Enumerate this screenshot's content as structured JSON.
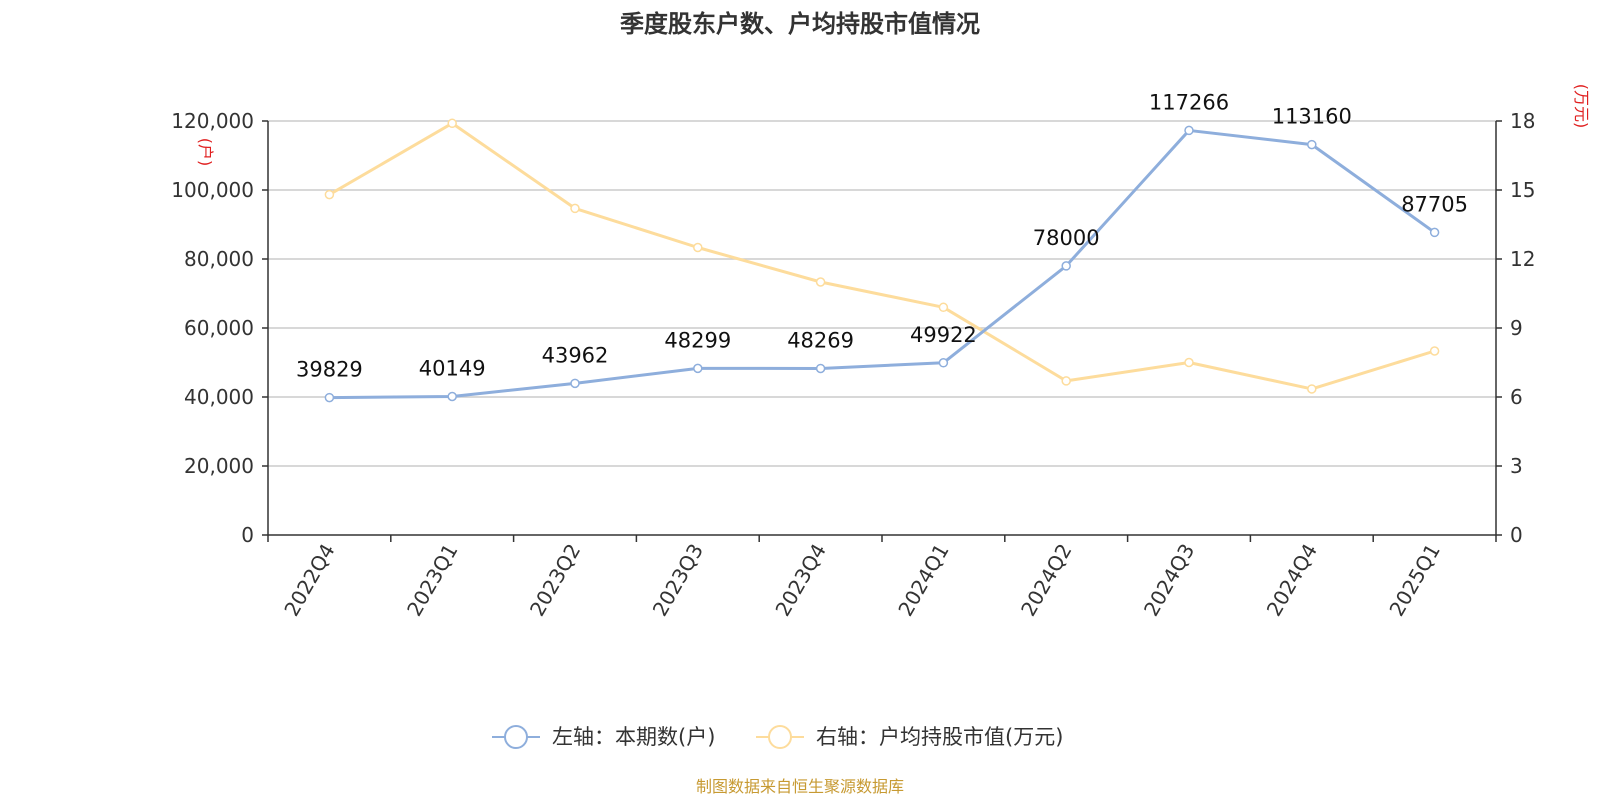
{
  "colors": {
    "series_left": "#8eaedc",
    "series_right": "#fddc9c",
    "axis_unit": "#e02020",
    "source": "#c79a32",
    "grid": "#cccccc",
    "axis": "#333333"
  },
  "chart_data": {
    "type": "line",
    "title": "季度股东户数、户均持股市值情况",
    "categories": [
      "2022Q4",
      "2023Q1",
      "2023Q2",
      "2023Q3",
      "2023Q4",
      "2024Q1",
      "2024Q2",
      "2024Q3",
      "2024Q4",
      "2025Q1"
    ],
    "left_axis": {
      "unit": "(户)",
      "ylim": [
        0,
        120000
      ],
      "ticks": [
        0,
        20000,
        40000,
        60000,
        80000,
        100000,
        120000
      ],
      "tick_labels": [
        "0",
        "20,000",
        "40,000",
        "60,000",
        "80,000",
        "100,000",
        "120,000"
      ]
    },
    "right_axis": {
      "unit": "(万元)",
      "ylim": [
        0,
        18
      ],
      "ticks": [
        0,
        3,
        6,
        9,
        12,
        15,
        18
      ],
      "tick_labels": [
        "0",
        "3",
        "6",
        "9",
        "12",
        "15",
        "18"
      ]
    },
    "series": [
      {
        "name": "左轴：本期数(户)",
        "axis": "left",
        "values": [
          39829,
          40149,
          43962,
          48299,
          48269,
          49922,
          78000,
          117266,
          113160,
          87705
        ],
        "data_labels": [
          "39829",
          "40149",
          "43962",
          "48299",
          "48269",
          "49922",
          "78000",
          "117266",
          "113160",
          "87705"
        ]
      },
      {
        "name": "右轴：户均持股市值(万元)",
        "axis": "right",
        "values": [
          14.8,
          17.9,
          14.2,
          12.5,
          11.0,
          9.9,
          6.7,
          7.5,
          6.35,
          8.0
        ]
      }
    ],
    "grid": true,
    "legend_position": "bottom-center"
  },
  "footer": {
    "source": "制图数据来自恒生聚源数据库"
  }
}
